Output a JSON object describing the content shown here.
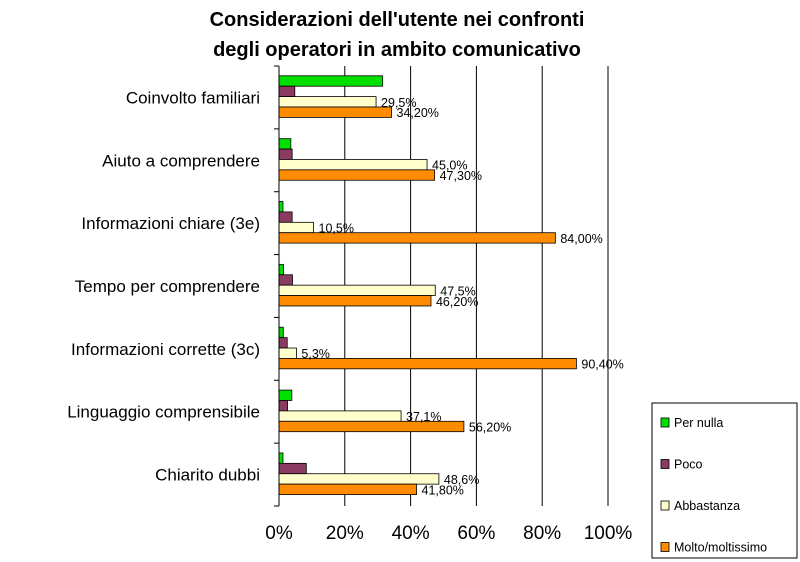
{
  "chart_data": {
    "type": "bar",
    "orientation": "horizontal",
    "title": [
      "Considerazioni dell'utente nei confronti",
      "degli operatori in ambito comunicativo"
    ],
    "xlabel": "",
    "ylabel": "",
    "xlim": [
      0,
      100
    ],
    "x_ticks": [
      "0%",
      "20%",
      "40%",
      "60%",
      "80%",
      "100%"
    ],
    "grid": true,
    "legend_position": "bottom-right",
    "categories": [
      "Coinvolto familiari",
      "Aiuto a comprendere",
      "Informazioni chiare (3e)",
      "Tempo per comprendere",
      "Informazioni corrette (3c)",
      "Linguaggio comprensibile",
      "Chiarito dubbi"
    ],
    "series": [
      {
        "name": "Per nulla",
        "color": "#00e000",
        "values": [
          31.5,
          3.6,
          1.2,
          1.4,
          1.3,
          3.9,
          1.2
        ],
        "labels": [
          "",
          "",
          "",
          "",
          "",
          "",
          ""
        ]
      },
      {
        "name": "Poco",
        "color": "#8b3a62",
        "values": [
          4.8,
          4.0,
          4.0,
          4.1,
          2.5,
          2.6,
          8.3
        ],
        "labels": [
          "",
          "",
          "",
          "",
          "",
          "",
          ""
        ]
      },
      {
        "name": "Abbastanza",
        "color": "#ffffcc",
        "values": [
          29.5,
          45.0,
          10.5,
          47.5,
          5.3,
          37.1,
          48.6
        ],
        "labels": [
          "29,5%",
          "45,0%",
          "10,5%",
          "47,5%",
          "5,3%",
          "37,1%",
          "48,6%"
        ]
      },
      {
        "name": "Molto/moltissimo",
        "color": "#ff8c00",
        "values": [
          34.2,
          47.3,
          84.0,
          46.2,
          90.4,
          56.2,
          41.8
        ],
        "labels": [
          "34,20%",
          "47,30%",
          "84,00%",
          "46,20%",
          "90,40%",
          "56,20%",
          "41,80%"
        ]
      }
    ]
  }
}
